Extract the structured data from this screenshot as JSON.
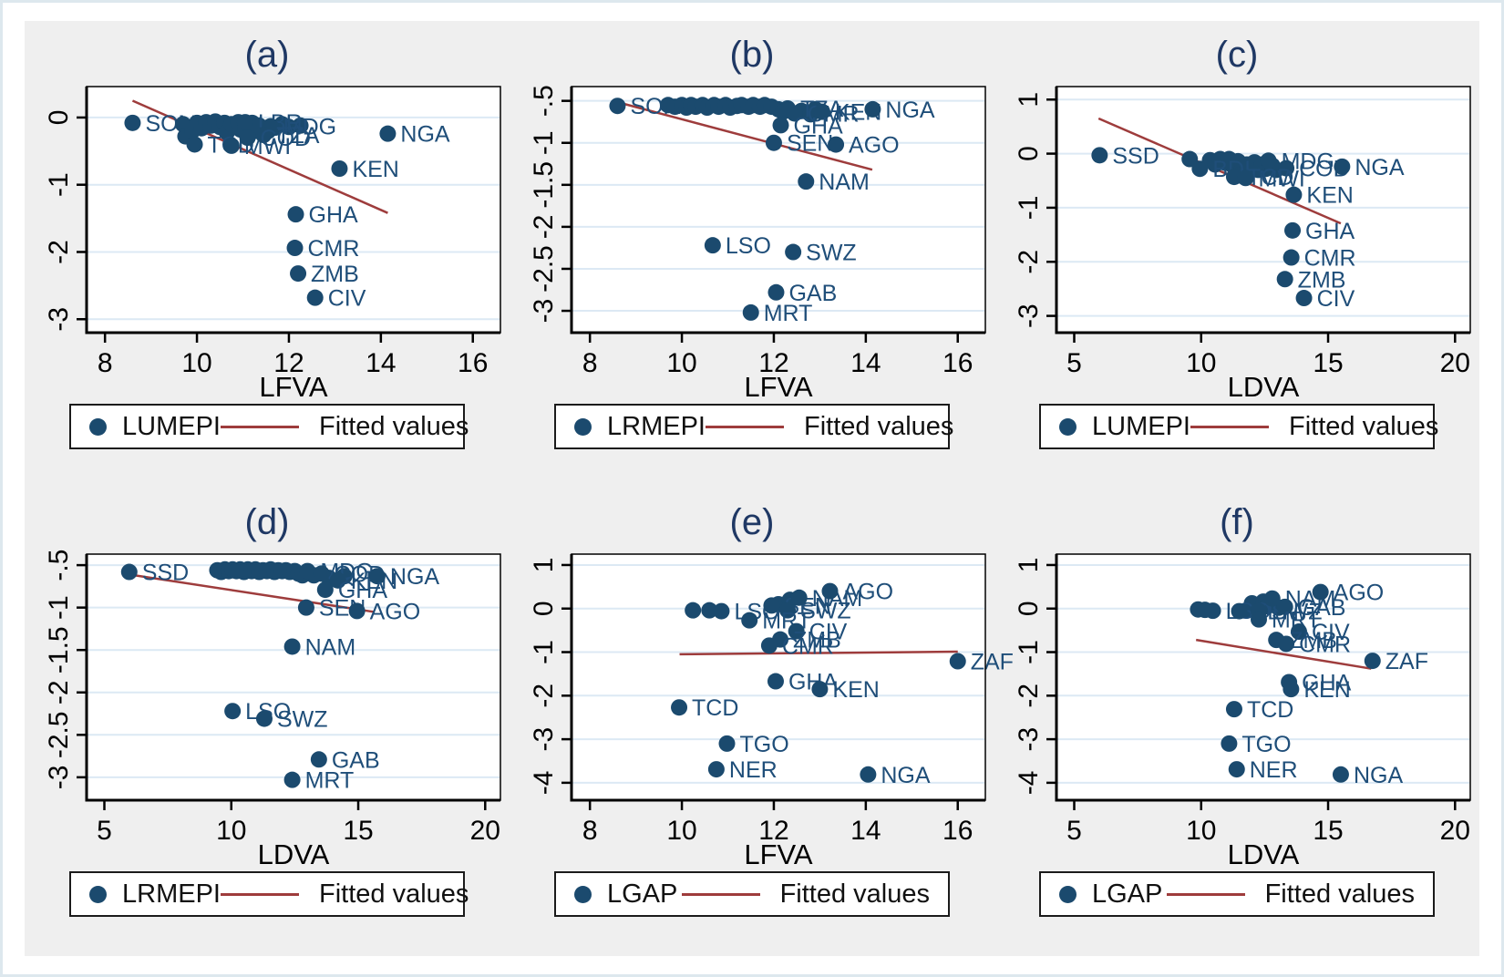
{
  "colors": {
    "dot": "#1b4a6e",
    "point_label": "#1f4e79",
    "fitted_line": "#9e3c3c",
    "gridline": "#dce9f4",
    "axis": "#000000",
    "title": "#1f3864",
    "tick_text": "#000000",
    "canvas_bg": "#efefef",
    "plot_bg": "#ffffff",
    "legend_border": "#1b1b1b"
  },
  "chart_data": [
    {
      "id": "a",
      "type": "scatter",
      "title": "(a)",
      "xlabel": "LFVA",
      "xlim": [
        7.6,
        16.6
      ],
      "xticks": [
        8,
        10,
        12,
        14,
        16
      ],
      "ylim": [
        -3.2,
        0.46
      ],
      "yticks": [
        0,
        -1,
        -2,
        -3
      ],
      "ytick_labels": [
        "0",
        "-1",
        "-2",
        "-3"
      ],
      "legend": {
        "series": "LUMEPI",
        "fitted": "Fitted values"
      },
      "fitted_line": {
        "x1": 8.6,
        "y1": 0.25,
        "x2": 14.15,
        "y2": -1.42
      },
      "points": [
        [
          8.6,
          -0.08,
          "SOM"
        ],
        [
          9.7,
          -0.1
        ],
        [
          9.75,
          -0.28
        ],
        [
          9.9,
          -0.2
        ],
        [
          10.0,
          -0.08
        ],
        [
          10.1,
          -0.16
        ],
        [
          10.2,
          -0.07
        ],
        [
          10.3,
          -0.12
        ],
        [
          10.4,
          -0.06
        ],
        [
          10.5,
          -0.14
        ],
        [
          10.6,
          -0.08
        ],
        [
          10.65,
          -0.22
        ],
        [
          10.75,
          -0.1
        ],
        [
          10.9,
          -0.07
        ],
        [
          10.95,
          -0.18
        ],
        [
          11.05,
          -0.14
        ],
        [
          11.2,
          -0.08
        ],
        [
          11.25,
          -0.2
        ],
        [
          11.35,
          -0.12
        ],
        [
          11.55,
          -0.2
        ],
        [
          11.7,
          -0.15
        ],
        [
          11.85,
          -0.1
        ],
        [
          12.0,
          -0.14
        ],
        [
          12.25,
          -0.12
        ],
        [
          9.95,
          -0.4,
          "TCD"
        ],
        [
          10.75,
          -0.42,
          "MWI"
        ],
        [
          11.05,
          -0.07,
          "LBR"
        ],
        [
          11.6,
          -0.13,
          "MDG"
        ],
        [
          11.45,
          -0.26,
          "TZA"
        ],
        [
          11.1,
          -0.3,
          "COD"
        ],
        [
          14.15,
          -0.24,
          "NGA"
        ],
        [
          13.1,
          -0.76,
          "KEN"
        ],
        [
          12.15,
          -1.44,
          "GHA"
        ],
        [
          12.13,
          -1.94,
          "CMR"
        ],
        [
          12.2,
          -2.32,
          "ZMB"
        ],
        [
          12.57,
          -2.68,
          "CIV"
        ]
      ]
    },
    {
      "id": "b",
      "type": "scatter",
      "title": "(b)",
      "xlabel": "LFVA",
      "xlim": [
        7.6,
        16.6
      ],
      "xticks": [
        8,
        10,
        12,
        14,
        16
      ],
      "ylim": [
        -3.26,
        -0.33
      ],
      "yticks": [
        -0.5,
        -1,
        -1.5,
        -2,
        -2.5,
        -3
      ],
      "ytick_labels": [
        "-.5",
        "-1",
        "-1.5",
        "-2",
        "-2.5",
        "-3"
      ],
      "legend": {
        "series": "LRMEPI",
        "fitted": "Fitted values"
      },
      "fitted_line": {
        "x1": 8.63,
        "y1": -0.52,
        "x2": 14.14,
        "y2": -1.32
      },
      "points": [
        [
          8.6,
          -0.56,
          "SOM"
        ],
        [
          9.7,
          -0.55
        ],
        [
          9.85,
          -0.57
        ],
        [
          10.0,
          -0.55
        ],
        [
          10.1,
          -0.58
        ],
        [
          10.2,
          -0.55
        ],
        [
          10.3,
          -0.57
        ],
        [
          10.45,
          -0.55
        ],
        [
          10.55,
          -0.58
        ],
        [
          10.7,
          -0.55
        ],
        [
          10.8,
          -0.57
        ],
        [
          10.95,
          -0.55
        ],
        [
          11.05,
          -0.58
        ],
        [
          11.2,
          -0.56
        ],
        [
          11.3,
          -0.55
        ],
        [
          11.45,
          -0.57
        ],
        [
          11.55,
          -0.55
        ],
        [
          11.7,
          -0.57
        ],
        [
          11.8,
          -0.55
        ],
        [
          11.95,
          -0.57
        ],
        [
          12.1,
          -0.6
        ],
        [
          12.2,
          -0.63
        ],
        [
          12.6,
          -0.62
        ],
        [
          12.8,
          -0.66
        ],
        [
          12.9,
          -0.6
        ],
        [
          12.3,
          -0.59,
          "TZA"
        ],
        [
          12.45,
          -0.65,
          "CMR"
        ],
        [
          13.05,
          -0.63,
          "KEN"
        ],
        [
          14.15,
          -0.6,
          "NGA"
        ],
        [
          12.15,
          -0.79,
          "GHA"
        ],
        [
          12.0,
          -1.0,
          "SEN"
        ],
        [
          13.35,
          -1.02,
          "AGO"
        ],
        [
          12.7,
          -1.46,
          "NAM"
        ],
        [
          10.67,
          -2.22,
          "LSO"
        ],
        [
          12.42,
          -2.3,
          "SWZ"
        ],
        [
          12.05,
          -2.78,
          "GAB"
        ],
        [
          11.5,
          -3.02,
          "MRT"
        ]
      ]
    },
    {
      "id": "c",
      "type": "scatter",
      "title": "(c)",
      "xlabel": "LDVA",
      "xlim": [
        4.3,
        20.6
      ],
      "xticks": [
        5,
        10,
        15,
        20
      ],
      "ylim": [
        -3.31,
        1.24
      ],
      "yticks": [
        1,
        0,
        -1,
        -2,
        -3
      ],
      "ytick_labels": [
        "1",
        "0",
        "-1",
        "-2",
        "-3"
      ],
      "legend": {
        "series": "LUMEPI",
        "fitted": "Fitted values"
      },
      "fitted_line": {
        "x1": 5.96,
        "y1": 0.65,
        "x2": 15.5,
        "y2": -1.29
      },
      "points": [
        [
          6.0,
          -0.03,
          "SSD"
        ],
        [
          9.55,
          -0.1
        ],
        [
          10.35,
          -0.12
        ],
        [
          10.55,
          -0.2
        ],
        [
          10.75,
          -0.1
        ],
        [
          10.95,
          -0.17
        ],
        [
          11.1,
          -0.1
        ],
        [
          11.25,
          -0.22
        ],
        [
          11.45,
          -0.14
        ],
        [
          11.6,
          -0.3
        ],
        [
          11.8,
          -0.2
        ],
        [
          11.95,
          -0.26
        ],
        [
          12.1,
          -0.16
        ],
        [
          12.25,
          -0.3
        ],
        [
          12.4,
          -0.2
        ],
        [
          12.55,
          -0.28
        ],
        [
          12.8,
          -0.22
        ],
        [
          12.95,
          -0.3
        ],
        [
          11.5,
          -0.4
        ],
        [
          9.95,
          -0.28,
          "BDI"
        ],
        [
          12.65,
          -0.13,
          "MDG"
        ],
        [
          13.35,
          -0.27,
          "COD"
        ],
        [
          11.3,
          -0.43,
          "TCD"
        ],
        [
          11.75,
          -0.45,
          "MWI"
        ],
        [
          15.55,
          -0.24,
          "NGA"
        ],
        [
          13.65,
          -0.76,
          "KEN"
        ],
        [
          13.6,
          -1.42,
          "GHA"
        ],
        [
          13.55,
          -1.92,
          "CMR"
        ],
        [
          13.3,
          -2.32,
          "ZMB"
        ],
        [
          14.05,
          -2.67,
          "CIV"
        ]
      ]
    },
    {
      "id": "d",
      "type": "scatter",
      "title": "(d)",
      "xlabel": "LDVA",
      "xlim": [
        4.3,
        20.6
      ],
      "xticks": [
        5,
        10,
        15,
        20
      ],
      "ylim": [
        -3.27,
        -0.37
      ],
      "yticks": [
        -0.5,
        -1,
        -1.5,
        -2,
        -2.5,
        -3
      ],
      "ytick_labels": [
        "-.5",
        "-1",
        "-1.5",
        "-2",
        "-2.5",
        "-3"
      ],
      "legend": {
        "series": "LRMEPI",
        "fitted": "Fitted values"
      },
      "fitted_line": {
        "x1": 5.98,
        "y1": -0.61,
        "x2": 15.6,
        "y2": -1.05
      },
      "points": [
        [
          5.98,
          -0.58,
          "SSD"
        ],
        [
          9.45,
          -0.56
        ],
        [
          9.6,
          -0.58
        ],
        [
          9.75,
          -0.55
        ],
        [
          9.9,
          -0.57
        ],
        [
          10.05,
          -0.55
        ],
        [
          10.2,
          -0.57
        ],
        [
          10.35,
          -0.55
        ],
        [
          10.5,
          -0.58
        ],
        [
          10.65,
          -0.55
        ],
        [
          10.8,
          -0.57
        ],
        [
          10.95,
          -0.55
        ],
        [
          11.1,
          -0.58
        ],
        [
          11.25,
          -0.56
        ],
        [
          11.4,
          -0.57
        ],
        [
          11.55,
          -0.55
        ],
        [
          11.7,
          -0.58
        ],
        [
          11.85,
          -0.56
        ],
        [
          12.0,
          -0.57
        ],
        [
          12.15,
          -0.56
        ],
        [
          12.3,
          -0.58
        ],
        [
          12.5,
          -0.57
        ],
        [
          12.65,
          -0.6
        ],
        [
          12.8,
          -0.62
        ],
        [
          13.25,
          -0.62
        ],
        [
          13.85,
          -0.65
        ],
        [
          14.45,
          -0.63
        ],
        [
          13.0,
          -0.57,
          "MDG"
        ],
        [
          13.55,
          -0.6,
          "COD"
        ],
        [
          14.2,
          -0.68,
          "KEN"
        ],
        [
          15.75,
          -0.63,
          "NGA"
        ],
        [
          13.7,
          -0.79,
          "GHA"
        ],
        [
          12.95,
          -1.0,
          "SEN"
        ],
        [
          14.95,
          -1.04,
          "AGO"
        ],
        [
          12.4,
          -1.46,
          "NAM"
        ],
        [
          10.05,
          -2.22,
          "LSO"
        ],
        [
          11.3,
          -2.31,
          "SWZ"
        ],
        [
          13.45,
          -2.79,
          "GAB"
        ],
        [
          12.4,
          -3.03,
          "MRT"
        ]
      ]
    },
    {
      "id": "e",
      "type": "scatter",
      "title": "(e)",
      "xlabel": "LFVA",
      "xlim": [
        7.6,
        16.6
      ],
      "xticks": [
        8,
        10,
        12,
        14,
        16
      ],
      "ylim": [
        -4.4,
        1.25
      ],
      "yticks": [
        1,
        0,
        -1,
        -2,
        -3,
        -4
      ],
      "ytick_labels": [
        "1",
        "0",
        "-1",
        "-2",
        "-3",
        "-4"
      ],
      "legend": {
        "series": "LGAP",
        "fitted": "Fitted values"
      },
      "fitted_line": {
        "x1": 9.95,
        "y1": -1.05,
        "x2": 16.0,
        "y2": -0.99
      },
      "points": [
        [
          10.24,
          -0.04
        ],
        [
          10.6,
          -0.04
        ],
        [
          12.1,
          0.1
        ],
        [
          12.35,
          0.2
        ],
        [
          10.86,
          -0.06,
          "LSO"
        ],
        [
          11.95,
          0.07,
          "SEN"
        ],
        [
          12.3,
          -0.04,
          "SWZ"
        ],
        [
          12.55,
          0.25,
          "NAM"
        ],
        [
          13.22,
          0.4,
          "AGO"
        ],
        [
          11.47,
          -0.27,
          "MRT"
        ],
        [
          12.49,
          -0.52,
          "CIV"
        ],
        [
          12.14,
          -0.71,
          "ZMB"
        ],
        [
          11.9,
          -0.85,
          "CMR"
        ],
        [
          16.0,
          -1.21,
          "ZAF"
        ],
        [
          12.04,
          -1.67,
          "GHA"
        ],
        [
          13.0,
          -1.85,
          "KEN"
        ],
        [
          9.94,
          -2.27,
          "TCD"
        ],
        [
          10.98,
          -3.1,
          "TGO"
        ],
        [
          10.75,
          -3.69,
          "NER"
        ],
        [
          14.05,
          -3.81,
          "NGA"
        ]
      ]
    },
    {
      "id": "f",
      "type": "scatter",
      "title": "(f)",
      "xlabel": "LDVA",
      "xlim": [
        4.3,
        20.6
      ],
      "xticks": [
        5,
        10,
        15,
        20
      ],
      "ylim": [
        -4.4,
        1.25
      ],
      "yticks": [
        1,
        0,
        -1,
        -2,
        -3,
        -4
      ],
      "ytick_labels": [
        "1",
        "0",
        "-1",
        "-2",
        "-3",
        "-4"
      ],
      "legend": {
        "series": "LGAP",
        "fitted": "Fitted values"
      },
      "fitted_line": {
        "x1": 9.8,
        "y1": -0.72,
        "x2": 16.7,
        "y2": -1.38
      },
      "points": [
        [
          9.88,
          -0.02
        ],
        [
          10.15,
          -0.03
        ],
        [
          11.8,
          -0.04
        ],
        [
          12.0,
          0.12
        ],
        [
          12.45,
          0.16
        ],
        [
          12.6,
          0.05
        ],
        [
          13.05,
          0.02
        ],
        [
          10.46,
          -0.05,
          "LSO"
        ],
        [
          11.5,
          -0.06,
          "SEN"
        ],
        [
          12.27,
          -0.06,
          "SWZ"
        ],
        [
          12.8,
          0.23,
          "NAM"
        ],
        [
          13.3,
          0.04,
          "GAB"
        ],
        [
          14.7,
          0.38,
          "AGO"
        ],
        [
          12.27,
          -0.25,
          "MRT"
        ],
        [
          13.85,
          -0.53,
          "CIV"
        ],
        [
          12.96,
          -0.72,
          "ZMB"
        ],
        [
          13.35,
          -0.81,
          "CMR"
        ],
        [
          16.75,
          -1.2,
          "ZAF"
        ],
        [
          13.46,
          -1.69,
          "GHA"
        ],
        [
          13.54,
          -1.85,
          "KEN"
        ],
        [
          11.3,
          -2.31,
          "TCD"
        ],
        [
          11.1,
          -3.1,
          "TGO"
        ],
        [
          11.4,
          -3.69,
          "NER"
        ],
        [
          15.5,
          -3.81,
          "NGA"
        ]
      ]
    }
  ]
}
